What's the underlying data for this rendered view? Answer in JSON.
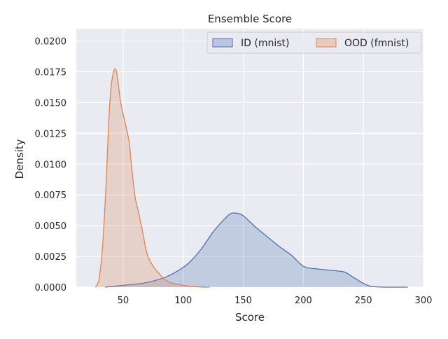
{
  "chart_data": {
    "type": "area",
    "title": "Ensemble Score",
    "xlabel": "Score",
    "ylabel": "Density",
    "xlim": [
      11,
      300
    ],
    "ylim": [
      0,
      0.021
    ],
    "xticks": [
      {
        "value": 50,
        "label": "50"
      },
      {
        "value": 100,
        "label": "100"
      },
      {
        "value": 150,
        "label": "150"
      },
      {
        "value": 200,
        "label": "200"
      },
      {
        "value": 250,
        "label": "250"
      },
      {
        "value": 300,
        "label": "300"
      }
    ],
    "yticks": [
      {
        "value": 0.0,
        "label": "0.0000"
      },
      {
        "value": 0.0025,
        "label": "0.0025"
      },
      {
        "value": 0.005,
        "label": "0.0050"
      },
      {
        "value": 0.0075,
        "label": "0.0075"
      },
      {
        "value": 0.01,
        "label": "0.0100"
      },
      {
        "value": 0.0125,
        "label": "0.0125"
      },
      {
        "value": 0.015,
        "label": "0.0150"
      },
      {
        "value": 0.0175,
        "label": "0.0175"
      },
      {
        "value": 0.02,
        "label": "0.0200"
      }
    ],
    "grid": true,
    "legend_position": "top-right",
    "series": [
      {
        "name": "ID (mnist)",
        "color": "#4c72b0",
        "fill": "#4c72b0",
        "x": [
          35,
          45,
          55,
          65,
          75,
          85,
          95,
          105,
          115,
          125,
          135,
          140,
          145,
          150,
          160,
          170,
          180,
          190,
          200,
          210,
          220,
          230,
          235,
          240,
          245,
          250,
          255,
          260,
          265,
          270,
          280,
          287
        ],
        "y": [
          0,
          0.0001,
          0.0002,
          0.0003,
          0.0005,
          0.0008,
          0.0013,
          0.002,
          0.0031,
          0.0045,
          0.0056,
          0.006,
          0.006,
          0.0058,
          0.0049,
          0.0041,
          0.0033,
          0.0026,
          0.0017,
          0.0015,
          0.0014,
          0.0013,
          0.0012,
          0.0009,
          0.0006,
          0.0003,
          0.0001,
          3e-05,
          1e-05,
          0,
          0,
          0
        ]
      },
      {
        "name": "OOD (fmnist)",
        "color": "#dd8452",
        "fill": "#dd8452",
        "x": [
          27,
          30,
          33,
          36,
          38,
          40,
          42,
          43.5,
          45,
          48,
          52,
          55,
          57,
          60,
          63,
          66,
          70,
          75,
          80,
          85,
          90,
          95,
          100,
          105,
          110,
          115,
          120,
          122
        ],
        "y": [
          0,
          0.0007,
          0.0035,
          0.0088,
          0.0135,
          0.0163,
          0.0175,
          0.0177,
          0.0172,
          0.015,
          0.0132,
          0.0118,
          0.0098,
          0.0073,
          0.006,
          0.0046,
          0.0027,
          0.0017,
          0.0011,
          0.0006,
          0.00035,
          0.00025,
          0.00015,
          8e-05,
          4e-05,
          1e-05,
          0,
          0
        ]
      }
    ]
  }
}
